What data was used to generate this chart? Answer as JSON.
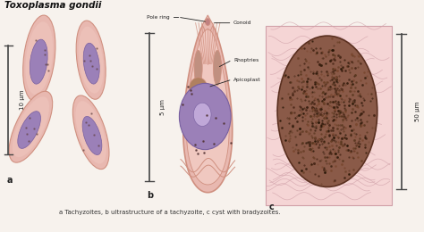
{
  "title": "Toxoplasma gondii",
  "bg_color": "#f7f2ed",
  "caption": "a Tachyzoites, b ultrastructure of a tachyzoite, c cyst with bradyzoites.",
  "body_color": "#e8b8b0",
  "body_dark": "#d09080",
  "body_inner": "#f0c8c0",
  "nucleus_color": "#9b80b8",
  "nucleus_dark": "#7860a0",
  "nucleolus_color": "#c0a8d8",
  "dots_color": "#604040",
  "scale_color": "#444444",
  "annotation_color": "#222222",
  "cyst_bg": "#f5d5d5",
  "cyst_tissue_line": "#d0a0a8",
  "cyst_fill": "#8a5a48",
  "cyst_edge": "#5a3020",
  "label_10um": "10 μm",
  "label_5um": "5 μm",
  "label_50um": "50 μm",
  "lbl_pole_ring": "Pole ring",
  "lbl_conoid": "Conoid",
  "lbl_rhoptries": "Rhoptries",
  "lbl_apicoplast": "Apicoplast"
}
